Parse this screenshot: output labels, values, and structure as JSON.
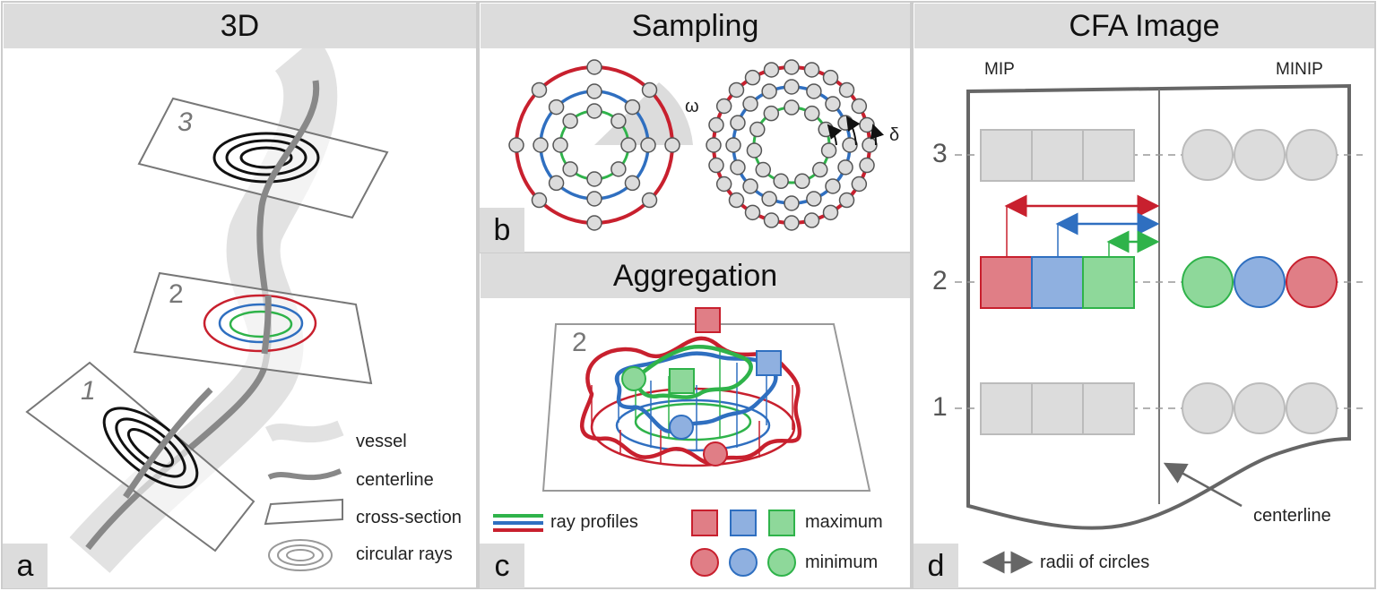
{
  "panels": {
    "a": {
      "title": "3D",
      "tag": "a",
      "slices": [
        "1",
        "2",
        "3"
      ],
      "legend": [
        "vessel",
        "centerline",
        "cross-section",
        "circular rays"
      ]
    },
    "b": {
      "title": "Sampling",
      "tag": "b",
      "omega": "ω",
      "delta": "δ"
    },
    "c": {
      "title": "Aggregation",
      "tag": "c",
      "slice": "2",
      "legend": {
        "ray_profiles": "ray profiles",
        "maximum": "maximum",
        "minimum": "minimum"
      }
    },
    "d": {
      "title": "CFA Image",
      "tag": "d",
      "mip": "MIP",
      "minip": "MINIP",
      "rows": [
        "3",
        "2",
        "1"
      ],
      "centerline": "centerline",
      "radii": "radii of circles"
    }
  },
  "colors": {
    "red": "#c8202e",
    "blue": "#2f6fc0",
    "green": "#2fb34a",
    "red_fill": "#e07e86",
    "blue_fill": "#8fb0e0",
    "green_fill": "#8ed89a",
    "gray_fill": "#dcdcdc",
    "gray_line": "#999999"
  }
}
